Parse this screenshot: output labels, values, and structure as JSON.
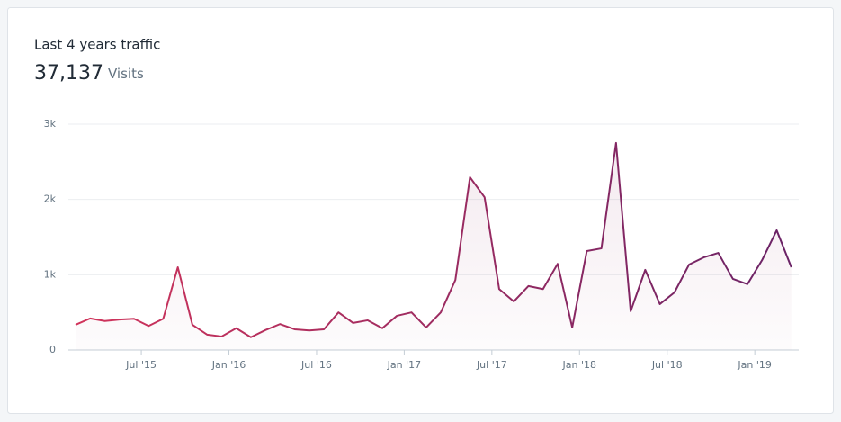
{
  "chart_data": {
    "type": "line",
    "title": "Last 4 years traffic",
    "total": "37,137",
    "total_unit": "Visits",
    "x": [
      "2015-02",
      "2015-03",
      "2015-04",
      "2015-05",
      "2015-06",
      "2015-07",
      "2015-08",
      "2015-09",
      "2015-10",
      "2015-11",
      "2015-12",
      "2016-01",
      "2016-02",
      "2016-03",
      "2016-04",
      "2016-05",
      "2016-06",
      "2016-07",
      "2016-08",
      "2016-09",
      "2016-10",
      "2016-11",
      "2016-12",
      "2017-01",
      "2017-02",
      "2017-03",
      "2017-04",
      "2017-05",
      "2017-06",
      "2017-07",
      "2017-08",
      "2017-09",
      "2017-10",
      "2017-11",
      "2017-12",
      "2018-01",
      "2018-02",
      "2018-03",
      "2018-04",
      "2018-05",
      "2018-06",
      "2018-07",
      "2018-08",
      "2018-09",
      "2018-10",
      "2018-11",
      "2018-12",
      "2019-01",
      "2019-02",
      "2019-03"
    ],
    "series": [
      {
        "name": "Visits",
        "color": "#d1345b",
        "color_end": "#6a2366",
        "values": [
          335,
          420,
          385,
          405,
          415,
          320,
          415,
          1100,
          335,
          205,
          180,
          290,
          170,
          265,
          345,
          275,
          260,
          275,
          500,
          360,
          395,
          290,
          455,
          500,
          300,
          500,
          930,
          2295,
          2030,
          810,
          645,
          850,
          810,
          1145,
          300,
          1315,
          1350,
          2750,
          515,
          1065,
          610,
          765,
          1135,
          1230,
          1290,
          945,
          875,
          1195,
          1590,
          1100
        ]
      }
    ],
    "ylim": [
      0,
      3000
    ],
    "yticks": [
      0,
      {
        "value": 1000,
        "label": "1k"
      },
      {
        "value": 2000,
        "label": "2k"
      },
      {
        "value": 3000,
        "label": "3k"
      }
    ],
    "xticks": [
      {
        "value": "2015-07",
        "label": "Jul '15"
      },
      {
        "value": "2016-01",
        "label": "Jan '16"
      },
      {
        "value": "2016-07",
        "label": "Jul '16"
      },
      {
        "value": "2017-01",
        "label": "Jan '17"
      },
      {
        "value": "2017-07",
        "label": "Jul '17"
      },
      {
        "value": "2018-01",
        "label": "Jan '18"
      },
      {
        "value": "2018-07",
        "label": "Jul '18"
      },
      {
        "value": "2019-01",
        "label": "Jan '19"
      }
    ],
    "grid": true
  }
}
